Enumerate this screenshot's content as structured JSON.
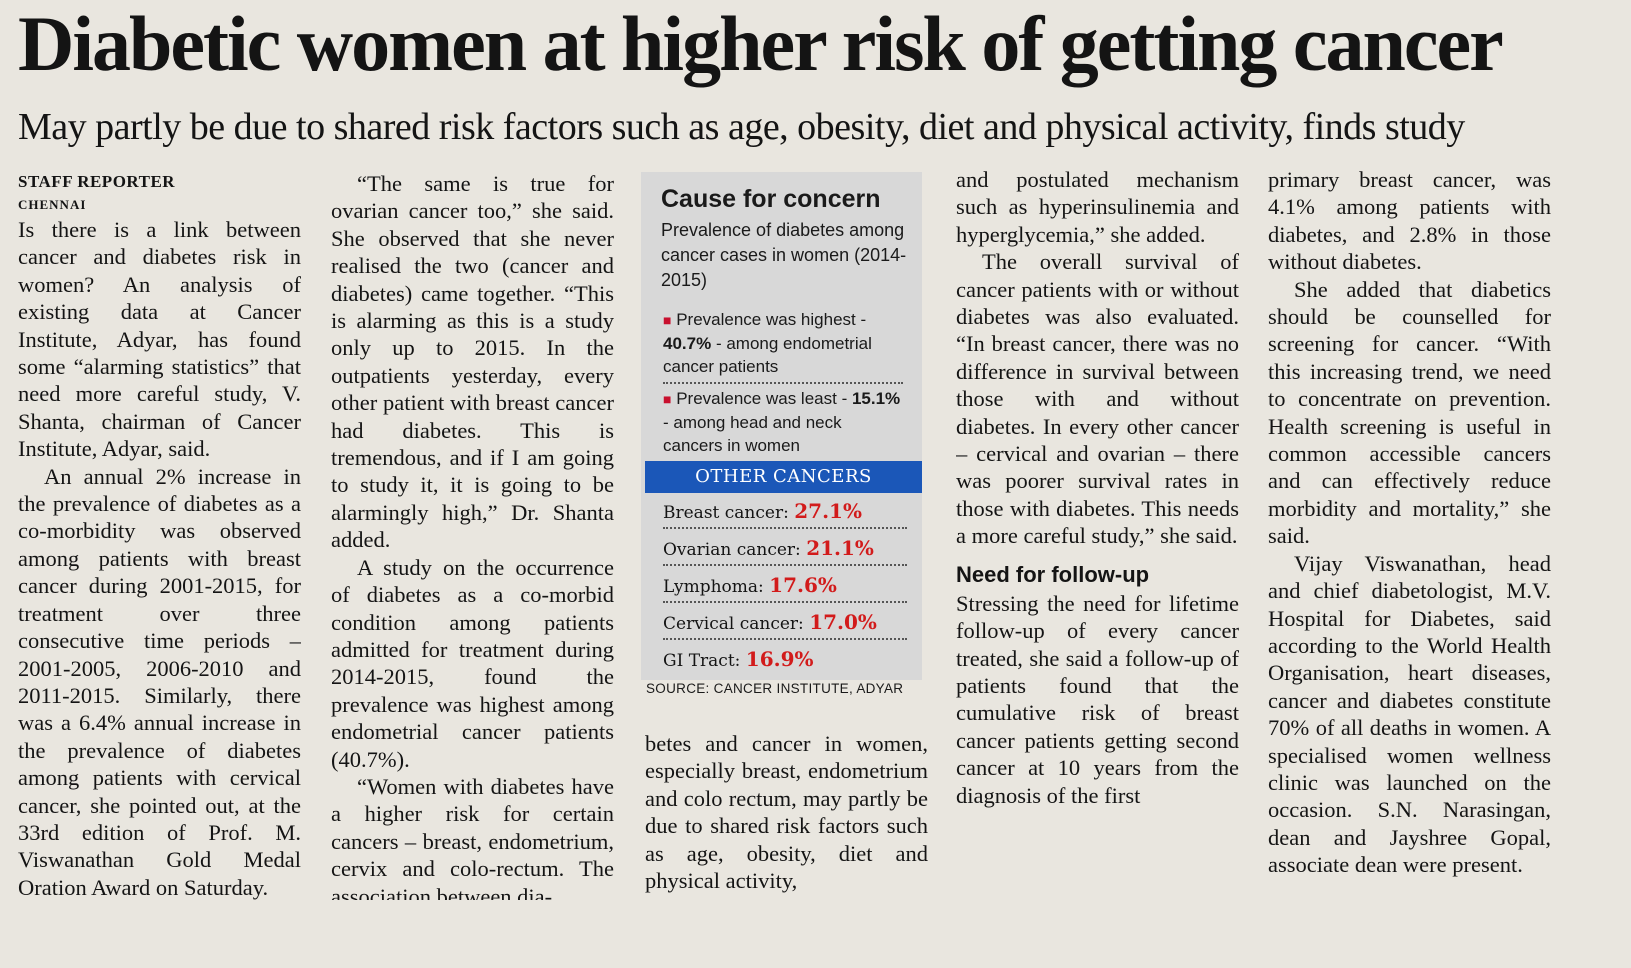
{
  "article": {
    "headline": "Diabetic women at higher risk of getting cancer",
    "subheadline": "May partly be due to shared risk factors such as age, obesity, diet and physical activity, finds study",
    "byline": "STAFF REPORTER",
    "dateline": "CHENNAI",
    "col1": {
      "p1": "Is there is a link between cancer and diabetes risk in women? An analysis of existing data at Cancer Institute, Adyar, has found some “alarming statistics” that need more careful study, V. Shanta, chairman of Cancer Institute, Adyar, said.",
      "p2": "An annual 2% increase in the prevalence of diabetes as a co-morbidity was observed among patients with breast cancer during 2001-2015, for treatment over three consecutive time periods – 2001-2005, 2006-2010 and 2011-2015. Similarly, there was a 6.4% annual increase in the prevalence of diabetes among patients with cervical cancer, she pointed out, at the 33rd edition of Prof. M. Viswanathan Gold Medal Oration Award on Saturday."
    },
    "col2": {
      "p1": "“The same is true for ovarian cancer too,” she said. She observed that she never realised the two (cancer and diabetes) came together. “This is alarming as this is a study only up to 2015. In the outpatients yesterday, every other patient with breast cancer had diabetes. This is tremendous, and if I am going to study it, it is going to be alarmingly high,” Dr. Shanta added.",
      "p2": "A study on the occurrence of diabetes as a co-morbid condition among patients admitted for treatment during 2014-2015, found the prevalence was highest among endometrial cancer patients (40.7%).",
      "p3": "“Women with diabetes have a higher risk for certain cancers – breast, endometrium, cervix and colo-rectum. The association between dia-"
    },
    "col3_bottom": "betes and cancer in women, especially breast, endometrium and colo rectum, may partly be due to shared risk factors such as age, obesity, diet and physical activity,",
    "col4": {
      "p1": "and postulated mechanism such as hyperinsulinemia and hyperglycemia,” she added.",
      "p2": "The overall survival of cancer patients with or without diabetes was also evaluated. “In breast cancer, there was no difference in survival between those with and without diabetes. In every other cancer – cervical and ovarian – there was poorer survival rates in those with diabetes. This needs a more careful study,” she said.",
      "subheading": "Need for follow-up",
      "p3": "Stressing the need for lifetime follow-up of every cancer treated, she said a follow-up of patients found that the cumulative risk of breast cancer patients getting second cancer at 10 years from the diagnosis of the first"
    },
    "col5": {
      "p1": "primary breast cancer, was 4.1% among patients with diabetes, and 2.8% in those without diabetes.",
      "p2": "She added that diabetics should be counselled for screening for cancer. “With this increasing trend, we need to concentrate on prevention. Health screening is useful in common accessible cancers and can effectively reduce morbidity and mortality,” she said.",
      "p3": "Vijay Viswanathan, head and chief diabetologist, M.V. Hospital for Diabetes, said according to the World Health Organisation, heart diseases, cancer and diabetes constitute 70% of all deaths in women. A specialised women wellness clinic was launched on the occasion. S.N. Narasingan, dean and Jayshree Gopal, associate dean were present."
    }
  },
  "infobox": {
    "title": "Cause for concern",
    "subtitle": "Prevalence of diabetes among cancer cases in women (2014-2015)",
    "highest": {
      "label": "Prevalence was highest -",
      "value": "40.7%",
      "rest": "- among endometrial cancer patients"
    },
    "least": {
      "label": "Prevalence was least -",
      "value": "15.1%",
      "rest": "- among head and neck cancers in women"
    },
    "other_header": "OTHER CANCERS",
    "other_cancers": [
      {
        "name": "Breast cancer:",
        "value": "27.1%"
      },
      {
        "name": "Ovarian cancer:",
        "value": "21.1%"
      },
      {
        "name": "Lymphoma:",
        "value": "17.6%"
      },
      {
        "name": "Cervical cancer:",
        "value": "17.0%"
      },
      {
        "name": "GI Tract:",
        "value": "16.9%"
      }
    ],
    "source": "SOURCE: CANCER INSTITUTE, ADYAR",
    "accent_color": "#1b57b8",
    "value_color": "#d21b1b"
  }
}
